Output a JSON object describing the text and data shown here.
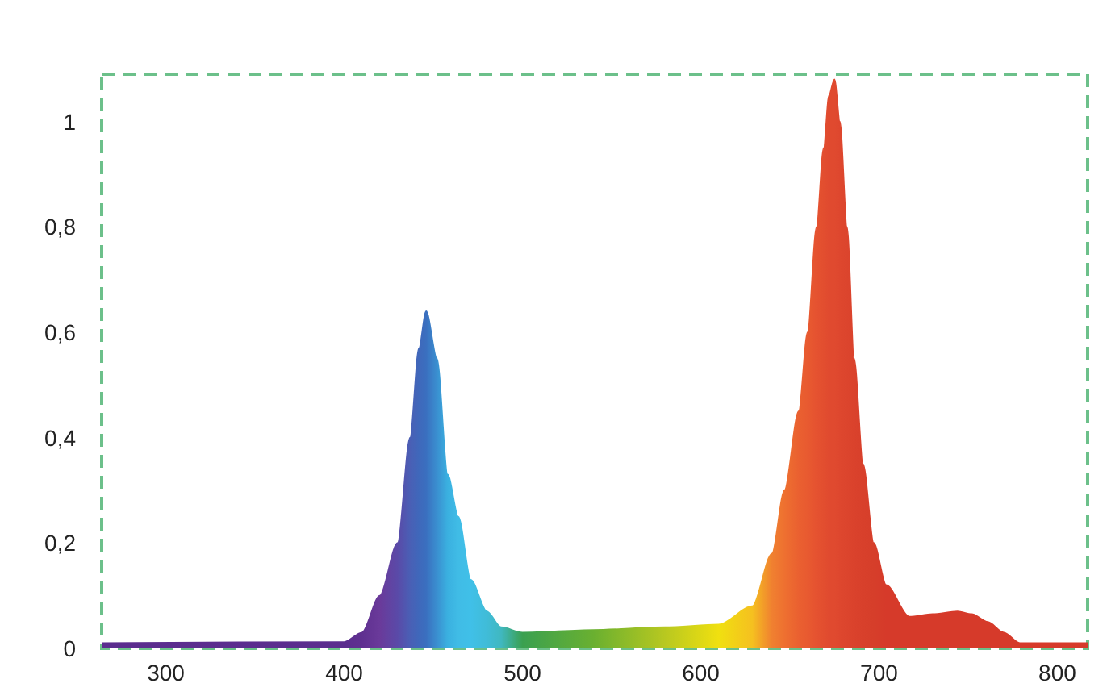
{
  "chart_data": {
    "type": "area",
    "x": [
      264,
      400,
      410,
      420,
      430,
      437,
      442,
      446,
      452,
      458,
      464,
      471,
      480,
      488,
      500,
      540,
      580,
      610,
      629,
      640,
      647,
      655,
      660,
      665,
      669,
      672,
      675,
      678,
      682,
      686,
      691,
      697,
      704,
      717,
      730,
      744,
      752,
      761,
      770,
      779,
      817
    ],
    "values": [
      0.01,
      0.012,
      0.03,
      0.1,
      0.2,
      0.4,
      0.57,
      0.64,
      0.55,
      0.33,
      0.25,
      0.13,
      0.07,
      0.04,
      0.03,
      0.035,
      0.04,
      0.045,
      0.08,
      0.18,
      0.3,
      0.45,
      0.6,
      0.8,
      0.95,
      1.05,
      1.08,
      1.0,
      0.8,
      0.55,
      0.35,
      0.2,
      0.12,
      0.06,
      0.065,
      0.07,
      0.065,
      0.05,
      0.03,
      0.01,
      0.01
    ],
    "colors": [
      "#5b2d8e",
      "#5b2d8e",
      "#5f3090",
      "#6a3a9a",
      "#5a4aa8",
      "#4a5fb5",
      "#3f68bb",
      "#3a6fbf",
      "#3a8fd0",
      "#3ab0e0",
      "#40bce6",
      "#40c0e8",
      "#40bcd8",
      "#40b8c0",
      "#3aa050",
      "#6ab030",
      "#b8c820",
      "#f0e010",
      "#f5c020",
      "#f08030",
      "#ee7030",
      "#ea6030",
      "#e85a30",
      "#e55230",
      "#e24e2f",
      "#e04a2f",
      "#e04a2f",
      "#de472e",
      "#dc452d",
      "#da422c",
      "#d8402b",
      "#d63e2a",
      "#d63a2a",
      "#d63a2a",
      "#d63a2a",
      "#d63a2a",
      "#d63a2a",
      "#d63a2a",
      "#d63a2a",
      "#d63a2a",
      "#d63a2a"
    ],
    "xlim": [
      264,
      817
    ],
    "xticks": [
      300,
      400,
      500,
      600,
      700,
      800
    ],
    "ylim": [
      0,
      1.09
    ],
    "yticks": [
      {
        "value": 0,
        "label": "0"
      },
      {
        "value": 0.2,
        "label": "0,2"
      },
      {
        "value": 0.4,
        "label": "0,4"
      },
      {
        "value": 0.6,
        "label": "0,6"
      },
      {
        "value": 0.8,
        "label": "0,8"
      },
      {
        "value": 1,
        "label": "1"
      }
    ],
    "grid": false
  }
}
